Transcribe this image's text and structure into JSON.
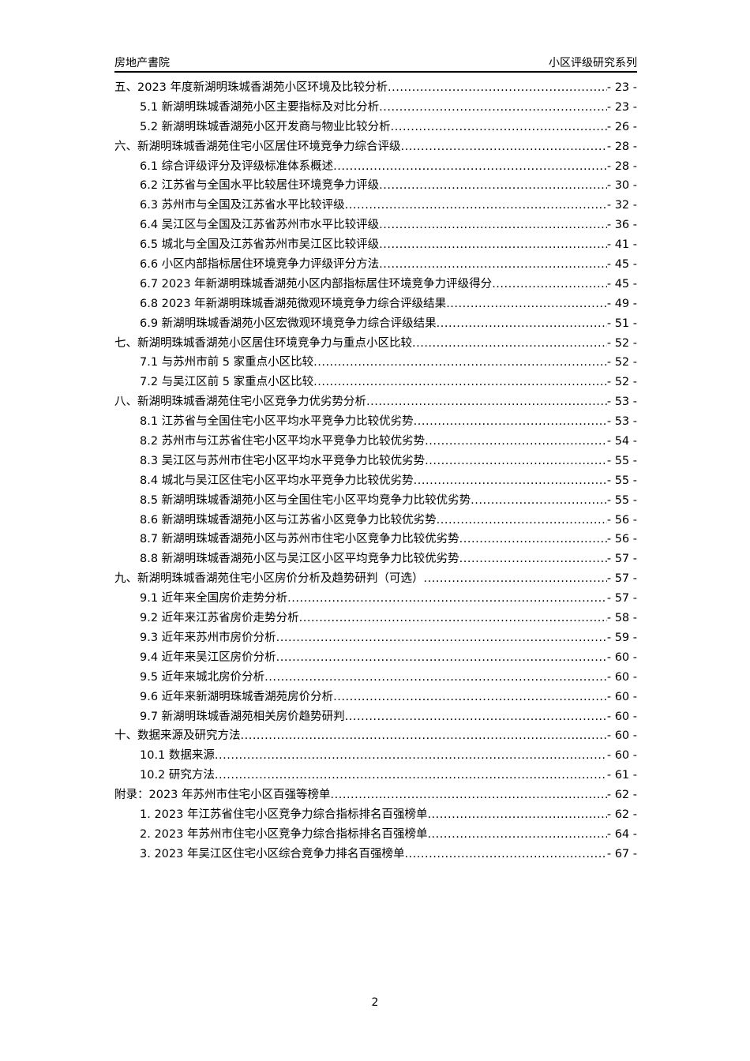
{
  "header": {
    "left": "房地产書院",
    "right": "小区评级研究系列"
  },
  "toc": [
    {
      "level": 1,
      "title": "五、2023 年度新湖明珠城香湖苑小区环境及比较分析",
      "page": "- 23 -"
    },
    {
      "level": 2,
      "title": "5.1 新湖明珠城香湖苑小区主要指标及对比分析",
      "page": "- 23 -"
    },
    {
      "level": 2,
      "title": "5.2 新湖明珠城香湖苑小区开发商与物业比较分析",
      "page": "- 26 -"
    },
    {
      "level": 1,
      "title": "六、新湖明珠城香湖苑住宅小区居住环境竞争力综合评级",
      "page": "- 28 -"
    },
    {
      "level": 2,
      "title": "6.1 综合评级评分及评级标准体系概述",
      "page": "- 28 -"
    },
    {
      "level": 2,
      "title": "6.2 江苏省与全国水平比较居住环境竞争力评级",
      "page": "- 30 -"
    },
    {
      "level": 2,
      "title": "6.3 苏州市与全国及江苏省水平比较评级",
      "page": "- 32 -"
    },
    {
      "level": 2,
      "title": "6.4 吴江区与全国及江苏省苏州市水平比较评级",
      "page": "- 36 -"
    },
    {
      "level": 2,
      "title": "6.5 城北与全国及江苏省苏州市吴江区比较评级",
      "page": "- 41 -"
    },
    {
      "level": 2,
      "title": "6.6 小区内部指标居住环境竞争力评级评分方法",
      "page": "- 45 -"
    },
    {
      "level": 2,
      "title": "6.7 2023 年新湖明珠城香湖苑小区内部指标居住环境竞争力评级得分",
      "page": "- 45 -"
    },
    {
      "level": 2,
      "title": "6.8 2023 年新湖明珠城香湖苑微观环境竞争力综合评级结果",
      "page": "- 49 -"
    },
    {
      "level": 2,
      "title": "6.9 新湖明珠城香湖苑小区宏微观环境竞争力综合评级结果",
      "page": "- 51 -"
    },
    {
      "level": 1,
      "title": "七、新湖明珠城香湖苑小区居住环境竞争力与重点小区比较",
      "page": "- 52 -"
    },
    {
      "level": 2,
      "title": "7.1 与苏州市前 5 家重点小区比较",
      "page": "- 52 -"
    },
    {
      "level": 2,
      "title": "7.2 与吴江区前 5 家重点小区比较",
      "page": "- 52 -"
    },
    {
      "level": 1,
      "title": "八、新湖明珠城香湖苑住宅小区竞争力优劣势分析",
      "page": "- 53 -"
    },
    {
      "level": 2,
      "title": "8.1 江苏省与全国住宅小区平均水平竞争力比较优劣势",
      "page": "- 53 -"
    },
    {
      "level": 2,
      "title": "8.2 苏州市与江苏省住宅小区平均水平竞争力比较优劣势",
      "page": "- 54 -"
    },
    {
      "level": 2,
      "title": "8.3 吴江区与苏州市住宅小区平均水平竞争力比较优劣势",
      "page": "- 55 -"
    },
    {
      "level": 2,
      "title": "8.4 城北与吴江区住宅小区平均水平竞争力比较优劣势",
      "page": "- 55 -"
    },
    {
      "level": 2,
      "title": "8.5 新湖明珠城香湖苑小区与全国住宅小区平均竞争力比较优劣势",
      "page": "- 55 -"
    },
    {
      "level": 2,
      "title": "8.6 新湖明珠城香湖苑小区与江苏省小区竞争力比较优劣势",
      "page": "- 56 -"
    },
    {
      "level": 2,
      "title": "8.7 新湖明珠城香湖苑小区与苏州市住宅小区竞争力比较优劣势",
      "page": "- 56 -"
    },
    {
      "level": 2,
      "title": "8.8 新湖明珠城香湖苑小区与吴江区小区平均竞争力比较优劣势",
      "page": "- 57 -"
    },
    {
      "level": 1,
      "title": "九、新湖明珠城香湖苑住宅小区房价分析及趋势研判（可选）",
      "page": "- 57 -"
    },
    {
      "level": 2,
      "title": "9.1 近年来全国房价走势分析",
      "page": "- 57 -"
    },
    {
      "level": 2,
      "title": "9.2 近年来江苏省房价走势分析",
      "page": "- 58 -"
    },
    {
      "level": 2,
      "title": "9.3 近年来苏州市房价分析",
      "page": "- 59 -"
    },
    {
      "level": 2,
      "title": "9.4 近年来吴江区房价分析",
      "page": "- 60 -"
    },
    {
      "level": 2,
      "title": "9.5 近年来城北房价分析",
      "page": "- 60 -"
    },
    {
      "level": 2,
      "title": "9.6 近年来新湖明珠城香湖苑房价分析",
      "page": "- 60 -"
    },
    {
      "level": 2,
      "title": "9.7 新湖明珠城香湖苑相关房价趋势研判",
      "page": "- 60 -"
    },
    {
      "level": 1,
      "title": "十、数据来源及研究方法",
      "page": "- 60 -"
    },
    {
      "level": 2,
      "title": "10.1 数据来源",
      "page": "- 60 -"
    },
    {
      "level": 2,
      "title": "10.2 研究方法",
      "page": "- 61 -"
    },
    {
      "level": 1,
      "title": "附录：2023 年苏州市住宅小区百强等榜单",
      "page": "- 62 -"
    },
    {
      "level": 2,
      "title": "1.  2023 年江苏省住宅小区竞争力综合指标排名百强榜单",
      "page": "- 62 -"
    },
    {
      "level": 2,
      "title": "2.  2023 年苏州市住宅小区竞争力综合指标排名百强榜单",
      "page": "- 64 -"
    },
    {
      "level": 2,
      "title": "3.  2023 年吴江区住宅小区综合竞争力排名百强榜单",
      "page": "- 67 -"
    }
  ],
  "footer": {
    "page_number": "2"
  }
}
